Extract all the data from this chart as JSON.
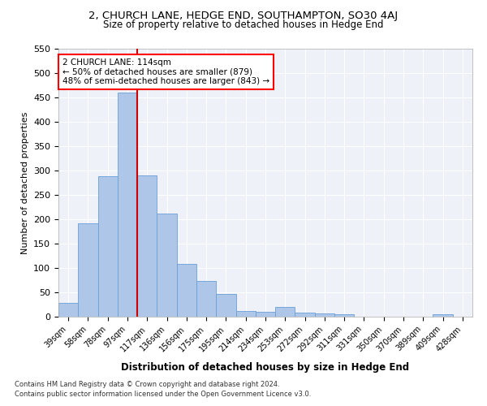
{
  "title1": "2, CHURCH LANE, HEDGE END, SOUTHAMPTON, SO30 4AJ",
  "title2": "Size of property relative to detached houses in Hedge End",
  "xlabel": "Distribution of detached houses by size in Hedge End",
  "ylabel": "Number of detached properties",
  "categories": [
    "39sqm",
    "58sqm",
    "78sqm",
    "97sqm",
    "117sqm",
    "136sqm",
    "156sqm",
    "175sqm",
    "195sqm",
    "214sqm",
    "234sqm",
    "253sqm",
    "272sqm",
    "292sqm",
    "311sqm",
    "331sqm",
    "350sqm",
    "370sqm",
    "389sqm",
    "409sqm",
    "428sqm"
  ],
  "values": [
    29,
    191,
    289,
    460,
    290,
    211,
    109,
    73,
    46,
    12,
    10,
    20,
    8,
    6,
    5,
    0,
    0,
    0,
    0,
    5,
    0
  ],
  "bar_color": "#aec6e8",
  "bar_edge_color": "#6a9fd8",
  "vline_color": "#cc0000",
  "annotation_title": "2 CHURCH LANE: 114sqm",
  "annotation_line1": "← 50% of detached houses are smaller (879)",
  "annotation_line2": "48% of semi-detached houses are larger (843) →",
  "footer1": "Contains HM Land Registry data © Crown copyright and database right 2024.",
  "footer2": "Contains public sector information licensed under the Open Government Licence v3.0.",
  "ylim": [
    0,
    550
  ],
  "yticks": [
    0,
    50,
    100,
    150,
    200,
    250,
    300,
    350,
    400,
    450,
    500,
    550
  ],
  "bg_color": "#eef2f8"
}
